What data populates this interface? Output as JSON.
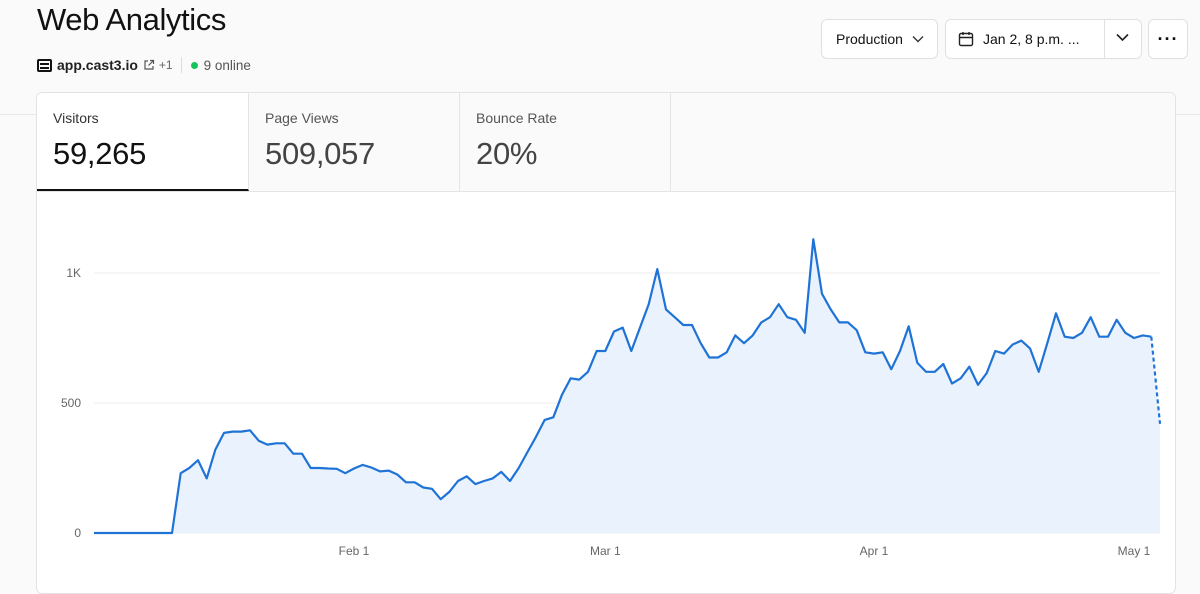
{
  "header": {
    "title": "Web Analytics",
    "domain": "app.cast3.io",
    "more_domains": "+1",
    "online": "9 online"
  },
  "toolbar": {
    "environment": "Production",
    "date_range": "Jan 2, 8 p.m. ...",
    "more_label": "···"
  },
  "metrics": [
    {
      "label": "Visitors",
      "value": "59,265",
      "active": true
    },
    {
      "label": "Page Views",
      "value": "509,057",
      "active": false
    },
    {
      "label": "Bounce Rate",
      "value": "20%",
      "active": false
    }
  ],
  "colors": {
    "line": "#1f73d6",
    "area": "#eaf3fd",
    "online": "#16c45b"
  },
  "chart_data": {
    "type": "area",
    "series": [
      {
        "start_date": "2024-01-02",
        "values": [
          0,
          0,
          0,
          0,
          0,
          0,
          0,
          0,
          0,
          0,
          230,
          250,
          280,
          210,
          320,
          385,
          390,
          390,
          395,
          355,
          340,
          345,
          345,
          305,
          305,
          250,
          250,
          248,
          247,
          230,
          248,
          262,
          252,
          237,
          240,
          225,
          195,
          195,
          175,
          170,
          130,
          158,
          200,
          218,
          188,
          200,
          210,
          235,
          200,
          250,
          310,
          370,
          435,
          445,
          532,
          595,
          590,
          620,
          700,
          700,
          775,
          790,
          700,
          790,
          880,
          1015,
          860,
          830,
          800,
          800,
          730,
          675,
          675,
          695,
          760,
          730,
          760,
          810,
          830,
          880,
          830,
          820,
          770,
          1130,
          920,
          860,
          810,
          810,
          780,
          695,
          690,
          695,
          630,
          700,
          795,
          655,
          620,
          620,
          650,
          575,
          595,
          640,
          570,
          615,
          700,
          690,
          725,
          740,
          710,
          620,
          730,
          845,
          755,
          750,
          770,
          830,
          755,
          755,
          820,
          770,
          750,
          760,
          755,
          420
        ],
        "dashed_last": true
      }
    ],
    "x_ticks": [
      "Feb 1",
      "Mar 1",
      "Apr 1",
      "May 1"
    ],
    "y_ticks": [
      0,
      500,
      "1K"
    ],
    "ylim": [
      0,
      1100
    ],
    "grid": true
  }
}
